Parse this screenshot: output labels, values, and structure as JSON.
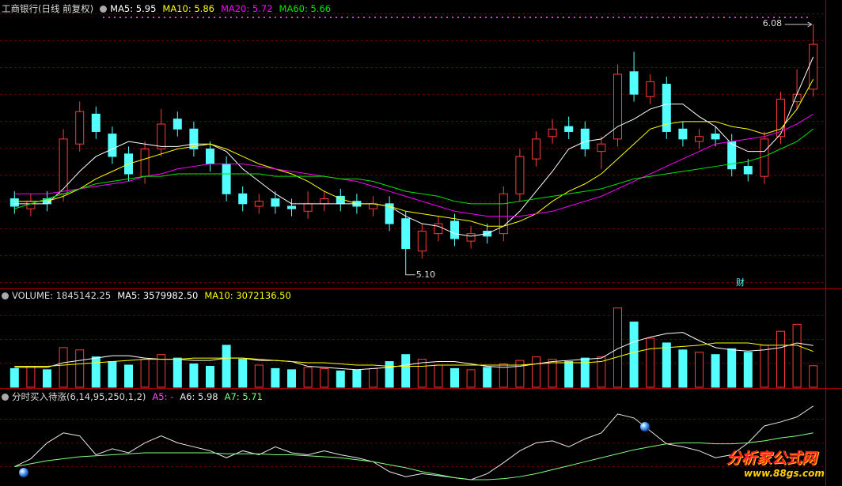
{
  "chart_data": [
    {
      "type": "candlestick",
      "title": "工商银行(日线 前复权)",
      "up_color": "#ff3a3a",
      "down_color": "#54ffff",
      "ylim": [
        5.02,
        6.14
      ],
      "high_label": "6.08",
      "low_label": "5.10",
      "event_label": "财",
      "open": [
        5.38,
        5.34,
        5.38,
        5.4,
        5.6,
        5.72,
        5.64,
        5.56,
        5.47,
        5.58,
        5.7,
        5.66,
        5.58,
        5.52,
        5.4,
        5.35,
        5.38,
        5.35,
        5.33,
        5.36,
        5.39,
        5.37,
        5.34,
        5.36,
        5.3,
        5.17,
        5.24,
        5.29,
        5.21,
        5.25,
        5.24,
        5.4,
        5.54,
        5.63,
        5.67,
        5.66,
        5.57,
        5.62,
        5.89,
        5.79,
        5.84,
        5.66,
        5.61,
        5.64,
        5.61,
        5.51,
        5.47,
        5.63,
        5.77,
        5.82
      ],
      "high": [
        5.41,
        5.4,
        5.41,
        5.66,
        5.77,
        5.75,
        5.67,
        5.59,
        5.61,
        5.74,
        5.73,
        5.69,
        5.61,
        5.55,
        5.43,
        5.4,
        5.41,
        5.38,
        5.41,
        5.41,
        5.42,
        5.4,
        5.39,
        5.39,
        5.33,
        5.28,
        5.31,
        5.32,
        5.27,
        5.28,
        5.43,
        5.58,
        5.65,
        5.7,
        5.71,
        5.69,
        5.63,
        5.92,
        5.97,
        5.88,
        5.87,
        5.69,
        5.66,
        5.67,
        5.64,
        5.54,
        5.65,
        5.81,
        5.9,
        6.08
      ],
      "low": [
        5.32,
        5.31,
        5.33,
        5.37,
        5.57,
        5.62,
        5.52,
        5.45,
        5.44,
        5.55,
        5.63,
        5.55,
        5.49,
        5.37,
        5.33,
        5.32,
        5.32,
        5.31,
        5.3,
        5.33,
        5.33,
        5.32,
        5.31,
        5.25,
        5.1,
        5.14,
        5.21,
        5.19,
        5.18,
        5.2,
        5.21,
        5.37,
        5.51,
        5.6,
        5.62,
        5.55,
        5.5,
        5.59,
        5.77,
        5.76,
        5.62,
        5.59,
        5.58,
        5.59,
        5.47,
        5.45,
        5.44,
        5.6,
        5.74,
        5.79
      ],
      "close": [
        5.35,
        5.37,
        5.36,
        5.62,
        5.73,
        5.65,
        5.55,
        5.48,
        5.58,
        5.68,
        5.66,
        5.58,
        5.52,
        5.4,
        5.36,
        5.37,
        5.35,
        5.34,
        5.36,
        5.38,
        5.36,
        5.35,
        5.36,
        5.28,
        5.18,
        5.25,
        5.28,
        5.22,
        5.24,
        5.23,
        5.4,
        5.55,
        5.62,
        5.66,
        5.65,
        5.58,
        5.6,
        5.88,
        5.8,
        5.85,
        5.65,
        5.62,
        5.63,
        5.62,
        5.5,
        5.48,
        5.62,
        5.78,
        5.8,
        6.0
      ],
      "series": [
        {
          "legend": "MA5: 5.95",
          "color": "#ffffff",
          "values": [
            5.36,
            5.36,
            5.36,
            5.42,
            5.49,
            5.55,
            5.58,
            5.61,
            5.6,
            5.59,
            5.59,
            5.6,
            5.6,
            5.57,
            5.5,
            5.45,
            5.4,
            5.36,
            5.36,
            5.36,
            5.36,
            5.36,
            5.36,
            5.35,
            5.31,
            5.28,
            5.27,
            5.24,
            5.23,
            5.24,
            5.27,
            5.33,
            5.41,
            5.49,
            5.58,
            5.61,
            5.62,
            5.67,
            5.7,
            5.74,
            5.76,
            5.76,
            5.71,
            5.67,
            5.6,
            5.57,
            5.57,
            5.64,
            5.8,
            5.95
          ]
        },
        {
          "legend": "MA10: 5.86",
          "color": "#ffff00",
          "values": [
            5.37,
            5.37,
            5.37,
            5.39,
            5.42,
            5.46,
            5.49,
            5.52,
            5.54,
            5.56,
            5.58,
            5.59,
            5.6,
            5.58,
            5.55,
            5.52,
            5.5,
            5.48,
            5.45,
            5.41,
            5.38,
            5.36,
            5.36,
            5.35,
            5.33,
            5.32,
            5.31,
            5.3,
            5.29,
            5.27,
            5.27,
            5.29,
            5.32,
            5.37,
            5.41,
            5.44,
            5.48,
            5.54,
            5.6,
            5.66,
            5.68,
            5.69,
            5.69,
            5.69,
            5.67,
            5.66,
            5.64,
            5.66,
            5.74,
            5.86
          ]
        },
        {
          "legend": "MA20: 5.72",
          "color": "#ff00ff",
          "values": [
            5.4,
            5.4,
            5.4,
            5.41,
            5.42,
            5.43,
            5.44,
            5.45,
            5.47,
            5.48,
            5.5,
            5.51,
            5.52,
            5.52,
            5.52,
            5.51,
            5.5,
            5.49,
            5.48,
            5.47,
            5.46,
            5.45,
            5.43,
            5.41,
            5.39,
            5.37,
            5.35,
            5.33,
            5.32,
            5.31,
            5.31,
            5.31,
            5.32,
            5.33,
            5.35,
            5.37,
            5.39,
            5.42,
            5.45,
            5.48,
            5.51,
            5.54,
            5.57,
            5.6,
            5.61,
            5.62,
            5.63,
            5.65,
            5.68,
            5.72
          ]
        },
        {
          "legend": "MA60: 5.66",
          "color": "#00e600",
          "values": [
            5.34,
            5.36,
            5.38,
            5.4,
            5.42,
            5.44,
            5.45,
            5.46,
            5.47,
            5.47,
            5.48,
            5.48,
            5.48,
            5.48,
            5.48,
            5.48,
            5.47,
            5.47,
            5.47,
            5.47,
            5.46,
            5.46,
            5.45,
            5.43,
            5.41,
            5.4,
            5.39,
            5.37,
            5.36,
            5.36,
            5.36,
            5.37,
            5.38,
            5.39,
            5.4,
            5.41,
            5.42,
            5.44,
            5.46,
            5.47,
            5.48,
            5.49,
            5.5,
            5.51,
            5.52,
            5.53,
            5.55,
            5.58,
            5.61,
            5.66
          ]
        }
      ]
    },
    {
      "type": "bar",
      "legend_main": "VOLUME: 1845142.25",
      "up_color": "#ff3a3a",
      "down_color": "#54ffff",
      "ylim": [
        0,
        8000000
      ],
      "values": [
        1600000,
        1800000,
        1500000,
        3400000,
        3200000,
        2600000,
        2200000,
        1900000,
        2400000,
        2800000,
        2500000,
        2000000,
        1800000,
        3600000,
        2400000,
        1900000,
        1600000,
        1500000,
        1700000,
        1600000,
        1400000,
        1500000,
        1600000,
        2200000,
        2800000,
        2400000,
        1900000,
        1600000,
        1500000,
        1700000,
        2000000,
        2300000,
        2600000,
        2400000,
        2200000,
        2500000,
        2600000,
        6800000,
        5600000,
        4200000,
        3800000,
        3200000,
        3000000,
        2800000,
        3300000,
        3000000,
        3600000,
        4800000,
        5400000,
        1845142.25
      ],
      "series": [
        {
          "legend": "MA5: 3579982.50",
          "color": "#ffffff",
          "values": [
            1700000,
            1700000,
            1700000,
            2100000,
            2300000,
            2500000,
            2700000,
            2700000,
            2500000,
            2400000,
            2400000,
            2300000,
            2300000,
            2500000,
            2500000,
            2300000,
            2300000,
            2200000,
            1800000,
            1700000,
            1600000,
            1500000,
            1600000,
            1700000,
            1900000,
            2100000,
            2200000,
            2200000,
            2000000,
            1800000,
            1700000,
            1800000,
            2000000,
            2200000,
            2300000,
            2400000,
            2500000,
            3300000,
            3900000,
            4300000,
            4600000,
            4700000,
            4000000,
            3400000,
            3200000,
            3100000,
            3200000,
            3400000,
            3800000,
            3579982.5
          ]
        },
        {
          "legend": "MA10: 3072136.50",
          "color": "#ffff00",
          "values": [
            1800000,
            1800000,
            1800000,
            1900000,
            2000000,
            2100000,
            2200000,
            2300000,
            2400000,
            2400000,
            2400000,
            2500000,
            2500000,
            2500000,
            2500000,
            2400000,
            2300000,
            2200000,
            2100000,
            2100000,
            2000000,
            1900000,
            1900000,
            1800000,
            1800000,
            1800000,
            1900000,
            1900000,
            1900000,
            1900000,
            1900000,
            1900000,
            2000000,
            2100000,
            2100000,
            2100000,
            2200000,
            2600000,
            3000000,
            3300000,
            3400000,
            3500000,
            3600000,
            3800000,
            3800000,
            3800000,
            3600000,
            3600000,
            3600000,
            3072136.5
          ]
        }
      ]
    },
    {
      "type": "line",
      "title": "分时买入待涨(6,14,95,250,1,2)",
      "ylim": [
        5.2,
        6.05
      ],
      "watermark": [
        "分析家公式网",
        "www.88gs.com"
      ],
      "legend_extra": {
        "legend": "A5: -",
        "color": "#ff44ff"
      },
      "series": [
        {
          "legend": "A6: 5.98",
          "color": "#e8e8e8",
          "values": [
            5.37,
            5.45,
            5.61,
            5.71,
            5.68,
            5.49,
            5.55,
            5.51,
            5.61,
            5.68,
            5.61,
            5.57,
            5.53,
            5.46,
            5.53,
            5.49,
            5.57,
            5.51,
            5.49,
            5.53,
            5.49,
            5.46,
            5.42,
            5.32,
            5.27,
            5.3,
            5.28,
            5.26,
            5.24,
            5.3,
            5.41,
            5.53,
            5.61,
            5.63,
            5.57,
            5.65,
            5.71,
            5.9,
            5.86,
            5.73,
            5.6,
            5.57,
            5.53,
            5.46,
            5.49,
            5.61,
            5.78,
            5.82,
            5.87,
            5.98
          ]
        },
        {
          "legend": "A7: 5.71",
          "color": "#80ff80",
          "values": [
            5.37,
            5.4,
            5.43,
            5.45,
            5.47,
            5.48,
            5.49,
            5.5,
            5.51,
            5.51,
            5.51,
            5.51,
            5.51,
            5.5,
            5.5,
            5.5,
            5.49,
            5.49,
            5.48,
            5.47,
            5.46,
            5.44,
            5.42,
            5.39,
            5.36,
            5.32,
            5.29,
            5.26,
            5.24,
            5.24,
            5.25,
            5.27,
            5.3,
            5.34,
            5.38,
            5.42,
            5.46,
            5.5,
            5.54,
            5.57,
            5.6,
            5.61,
            5.61,
            5.6,
            5.6,
            5.61,
            5.63,
            5.66,
            5.68,
            5.71
          ]
        }
      ]
    }
  ]
}
